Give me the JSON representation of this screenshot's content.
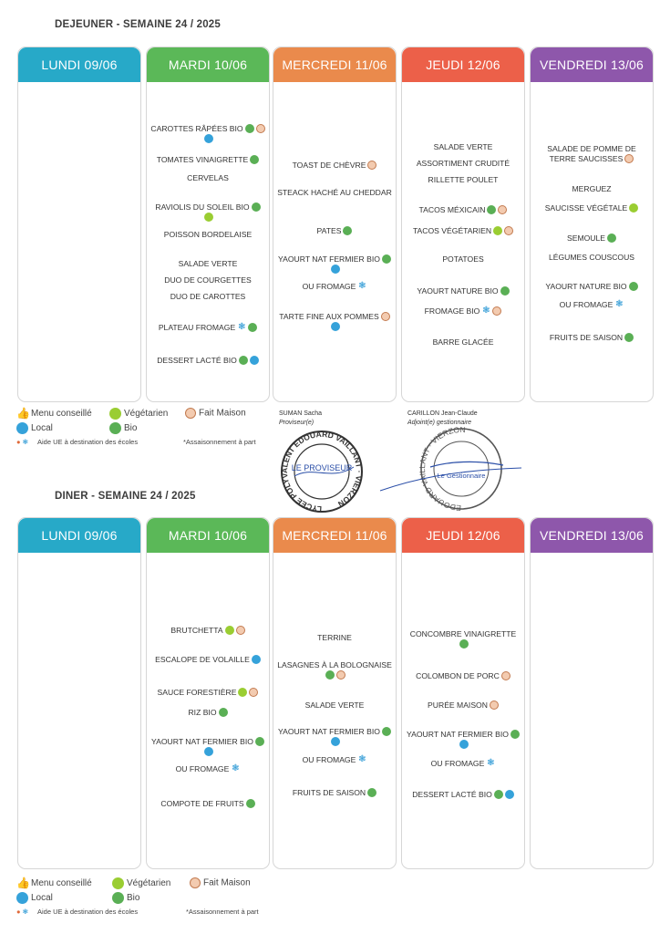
{
  "dejeuner": {
    "title": "DEJEUNER - SEMAINE 24 / 2025",
    "days": [
      {
        "label": "LUNDI 09/06",
        "color": "#27a9c8",
        "items": []
      },
      {
        "label": "MARDI 10/06",
        "color": "#5bb858",
        "items": [
          {
            "text": "CAROTTES RÂPÉES BIO",
            "icons": [
              "bio",
              "fm",
              "loc"
            ]
          },
          {
            "text": "TOMATES VINAIGRETTE",
            "icons": [
              "bio"
            ]
          },
          {
            "text": "CERVELAS",
            "icons": []
          },
          {
            "text": "RAVIOLIS DU SOLEIL BIO",
            "icons": [
              "bio",
              "veg"
            ]
          },
          {
            "text": "POISSON BORDELAISE",
            "icons": []
          },
          {
            "text": "SALADE VERTE",
            "icons": []
          },
          {
            "text": "DUO DE COURGETTES",
            "icons": []
          },
          {
            "text": "DUO DE CAROTTES",
            "icons": []
          },
          {
            "text": "PLATEAU FROMAGE",
            "icons": [
              "ue",
              "bio"
            ]
          },
          {
            "text": "DESSERT LACTÉ BIO",
            "icons": [
              "bio",
              "loc"
            ]
          }
        ]
      },
      {
        "label": "MERCREDI 11/06",
        "color": "#ea8a4c",
        "items": [
          {
            "text": "TOAST DE CHÈVRE",
            "icons": [
              "fm"
            ]
          },
          {
            "text": "STEACK HACHÉ AU CHEDDAR",
            "icons": []
          },
          {
            "text": "PATES",
            "icons": [
              "bio"
            ]
          },
          {
            "text": "YAOURT NAT FERMIER BIO",
            "icons": [
              "bio",
              "loc"
            ]
          },
          {
            "text": "OU FROMAGE",
            "icons": [
              "ue"
            ]
          },
          {
            "text": "TARTE FINE AUX POMMES",
            "icons": [
              "fm",
              "loc"
            ]
          }
        ]
      },
      {
        "label": "JEUDI 12/06",
        "color": "#ec6049",
        "items": [
          {
            "text": "SALADE VERTE",
            "icons": []
          },
          {
            "text": "ASSORTIMENT CRUDITÉ",
            "icons": []
          },
          {
            "text": "RILLETTE POULET",
            "icons": []
          },
          {
            "text": "TACOS MÉXICAIN",
            "icons": [
              "bio",
              "fm"
            ]
          },
          {
            "text": "TACOS VÉGÉTARIEN",
            "icons": [
              "veg",
              "fm"
            ]
          },
          {
            "text": "POTATOES",
            "icons": []
          },
          {
            "text": "YAOURT NATURE BIO",
            "icons": [
              "bio"
            ]
          },
          {
            "text": "FROMAGE BIO",
            "icons": [
              "ue",
              "fm"
            ]
          },
          {
            "text": "BARRE GLACÉE",
            "icons": []
          }
        ]
      },
      {
        "label": "VENDREDI 13/06",
        "color": "#8e57ab",
        "items": [
          {
            "text": "SALADE DE POMME DE TERRE SAUCISSES",
            "icons": [
              "fm"
            ]
          },
          {
            "text": "MERGUEZ",
            "icons": []
          },
          {
            "text": "SAUCISSE VÉGÉTALE",
            "icons": [
              "veg"
            ]
          },
          {
            "text": "SEMOULE",
            "icons": [
              "bio"
            ]
          },
          {
            "text": "LÉGUMES COUSCOUS",
            "icons": []
          },
          {
            "text": "YAOURT NATURE BIO",
            "icons": [
              "bio"
            ]
          },
          {
            "text": "OU FROMAGE",
            "icons": [
              "ue"
            ]
          },
          {
            "text": "FRUITS DE SAISON",
            "icons": [
              "bio"
            ]
          }
        ]
      }
    ]
  },
  "diner": {
    "title": "DINER - SEMAINE 24 / 2025",
    "days": [
      {
        "label": "LUNDI 09/06",
        "color": "#27a9c8",
        "items": []
      },
      {
        "label": "MARDI 10/06",
        "color": "#5bb858",
        "items": [
          {
            "text": "BRUTCHETTA",
            "icons": [
              "veg",
              "fm"
            ]
          },
          {
            "text": "ESCALOPE DE VOLAILLE",
            "icons": [
              "loc"
            ]
          },
          {
            "text": "SAUCE FORESTIÈRE",
            "icons": [
              "veg",
              "fm"
            ]
          },
          {
            "text": "RIZ BIO",
            "icons": [
              "bio"
            ]
          },
          {
            "text": "YAOURT NAT FERMIER BIO",
            "icons": [
              "bio",
              "loc"
            ]
          },
          {
            "text": "OU FROMAGE",
            "icons": [
              "ue"
            ]
          },
          {
            "text": "COMPOTE DE FRUITS",
            "icons": [
              "bio"
            ]
          }
        ]
      },
      {
        "label": "MERCREDI 11/06",
        "color": "#ea8a4c",
        "items": [
          {
            "text": "TERRINE",
            "icons": []
          },
          {
            "text": "LASAGNES À LA BOLOGNAISE",
            "icons": [
              "bio",
              "fm"
            ]
          },
          {
            "text": "SALADE VERTE",
            "icons": []
          },
          {
            "text": "YAOURT NAT FERMIER BIO",
            "icons": [
              "bio",
              "loc"
            ]
          },
          {
            "text": "OU FROMAGE",
            "icons": [
              "ue"
            ]
          },
          {
            "text": "FRUITS DE SAISON",
            "icons": [
              "bio"
            ]
          }
        ]
      },
      {
        "label": "JEUDI 12/06",
        "color": "#ec6049",
        "items": [
          {
            "text": "CONCOMBRE VINAIGRETTE",
            "icons": [
              "bio"
            ]
          },
          {
            "text": "COLOMBON DE PORC",
            "icons": [
              "fm"
            ]
          },
          {
            "text": "PURÉE MAISON",
            "icons": [
              "fm"
            ]
          },
          {
            "text": "YAOURT NAT FERMIER BIO",
            "icons": [
              "bio",
              "loc"
            ]
          },
          {
            "text": "OU FROMAGE",
            "icons": [
              "ue"
            ]
          },
          {
            "text": "DESSERT LACTÉ BIO",
            "icons": [
              "bio",
              "loc"
            ]
          }
        ]
      },
      {
        "label": "VENDREDI 13/06",
        "color": "#8e57ab",
        "items": []
      }
    ]
  },
  "legend": {
    "menu_conseille": "Menu conseillé",
    "vegetarien": "Végétarien",
    "fait_maison": "Fait Maison",
    "local": "Local",
    "bio": "Bio",
    "aide_ue": "Aide UE à destination des écoles",
    "assaisonnement": "*Assaisonnement à part"
  },
  "signatures": {
    "left_name": "SUMAN Sacha",
    "left_role": "Proviseur(e)",
    "right_name": "CARILLON Jean-Claude",
    "right_role": "Adjoint(e) gestionnaire",
    "stamp1_ring": "LYCEE POLYVALENT EDOUARD VAILLANT · VIERZON",
    "stamp1_center": "LE PROVISEUR",
    "stamp2_ring": "EDOUARD VAILLANT · VIERZON",
    "stamp2_center": "Le Gestionnaire"
  },
  "colors": {
    "bio": "#5aaf55",
    "veg": "#9acd32",
    "fm": "#c27a4f",
    "loc": "#35a2da",
    "ue": "#3aa0d8"
  }
}
